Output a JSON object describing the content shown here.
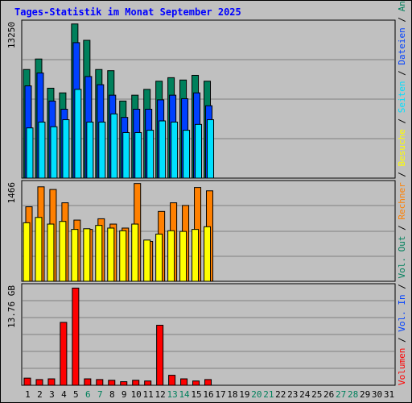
{
  "title": "Tages-Statistik im Monat September 2025",
  "colors": {
    "background": "#c0c0c0",
    "plot": "#c0c0c0",
    "grid": "#808080",
    "anfragen": "#00805c",
    "dateien": "#0040ff",
    "seiten": "#00e0ff",
    "besuche": "#ffff00",
    "rechner": "#ff8000",
    "volumen": "#ff0000",
    "day_default": "#000000",
    "day_weekend": "#00805c"
  },
  "legend": {
    "right_top": [
      {
        "text": "Anfragen",
        "color": "#00805c"
      },
      {
        "text": " / ",
        "color": "#000000"
      },
      {
        "text": "Dateien",
        "color": "#0040ff"
      },
      {
        "text": " / ",
        "color": "#000000"
      },
      {
        "text": "Seiten",
        "color": "#00e0ff"
      },
      {
        "text": " / ",
        "color": "#000000"
      },
      {
        "text": "Besuche",
        "color": "#ffff00"
      },
      {
        "text": " / ",
        "color": "#000000"
      },
      {
        "text": "Rechner",
        "color": "#ff8000"
      },
      {
        "text": " / ",
        "color": "#000000"
      },
      {
        "text": "Vol. Out",
        "color": "#00805c"
      },
      {
        "text": " / ",
        "color": "#000000"
      },
      {
        "text": "Vol. In",
        "color": "#0040ff"
      },
      {
        "text": " / ",
        "color": "#000000"
      },
      {
        "text": "Volumen",
        "color": "#ff0000"
      }
    ]
  },
  "chart_data": [
    {
      "type": "bar",
      "panel": "top",
      "ymax_label": "13250",
      "ylim": [
        0,
        13250
      ],
      "grid": true,
      "categories": [
        "1",
        "2",
        "3",
        "4",
        "5",
        "6",
        "7",
        "8",
        "9",
        "10",
        "11",
        "12",
        "13",
        "14",
        "15",
        "16"
      ],
      "series": [
        {
          "name": "Anfragen",
          "values": [
            9300,
            10200,
            7700,
            7300,
            13200,
            11800,
            9300,
            9200,
            6600,
            7100,
            7600,
            8300,
            8600,
            8400,
            8800,
            8300
          ]
        },
        {
          "name": "Dateien",
          "values": [
            7900,
            9000,
            6600,
            5900,
            11600,
            8700,
            8000,
            7100,
            5200,
            5900,
            5900,
            6700,
            7100,
            6800,
            7300,
            6200
          ]
        },
        {
          "name": "Seiten",
          "values": [
            4300,
            4800,
            4400,
            5000,
            7600,
            4800,
            4800,
            5500,
            3900,
            3900,
            4100,
            4900,
            4800,
            4100,
            4600,
            5000
          ]
        }
      ]
    },
    {
      "type": "bar",
      "panel": "middle",
      "ymax_label": "1466",
      "ylim": [
        0,
        1466
      ],
      "grid": true,
      "categories": [
        "1",
        "2",
        "3",
        "4",
        "5",
        "6",
        "7",
        "8",
        "9",
        "10",
        "11",
        "12",
        "13",
        "14",
        "15",
        "16"
      ],
      "series": [
        {
          "name": "Besuche",
          "values": [
            880,
            960,
            860,
            900,
            780,
            790,
            840,
            800,
            760,
            860,
            620,
            710,
            760,
            750,
            780,
            820
          ]
        },
        {
          "name": "Rechner",
          "values": [
            1120,
            1420,
            1380,
            1180,
            920,
            780,
            940,
            860,
            800,
            1470,
            600,
            1050,
            1180,
            1140,
            1410,
            1360
          ]
        }
      ]
    },
    {
      "type": "bar",
      "panel": "bottom",
      "ymax_label": "13.76 GB",
      "ylim": [
        0,
        13.76
      ],
      "grid": true,
      "categories": [
        "1",
        "2",
        "3",
        "4",
        "5",
        "6",
        "7",
        "8",
        "9",
        "10",
        "11",
        "12",
        "13",
        "14",
        "15",
        "16"
      ],
      "series": [
        {
          "name": "Volumen",
          "values": [
            1.0,
            0.8,
            0.9,
            8.8,
            13.6,
            0.9,
            0.8,
            0.7,
            0.5,
            0.7,
            0.6,
            8.4,
            1.4,
            0.9,
            0.6,
            0.8
          ]
        }
      ]
    }
  ],
  "x_days": [
    {
      "label": "1",
      "weekend": false
    },
    {
      "label": "2",
      "weekend": false
    },
    {
      "label": "3",
      "weekend": false
    },
    {
      "label": "4",
      "weekend": false
    },
    {
      "label": "5",
      "weekend": false
    },
    {
      "label": "6",
      "weekend": true
    },
    {
      "label": "7",
      "weekend": true
    },
    {
      "label": "8",
      "weekend": false
    },
    {
      "label": "9",
      "weekend": false
    },
    {
      "label": "10",
      "weekend": false
    },
    {
      "label": "11",
      "weekend": false
    },
    {
      "label": "12",
      "weekend": false
    },
    {
      "label": "13",
      "weekend": true
    },
    {
      "label": "14",
      "weekend": true
    },
    {
      "label": "15",
      "weekend": false
    },
    {
      "label": "16",
      "weekend": false
    },
    {
      "label": "17",
      "weekend": false
    },
    {
      "label": "18",
      "weekend": false
    },
    {
      "label": "19",
      "weekend": false
    },
    {
      "label": "20",
      "weekend": true
    },
    {
      "label": "21",
      "weekend": true
    },
    {
      "label": "22",
      "weekend": false
    },
    {
      "label": "23",
      "weekend": false
    },
    {
      "label": "24",
      "weekend": false
    },
    {
      "label": "25",
      "weekend": false
    },
    {
      "label": "26",
      "weekend": false
    },
    {
      "label": "27",
      "weekend": true
    },
    {
      "label": "28",
      "weekend": true
    },
    {
      "label": "29",
      "weekend": false
    },
    {
      "label": "30",
      "weekend": false
    },
    {
      "label": "31",
      "weekend": false
    }
  ]
}
